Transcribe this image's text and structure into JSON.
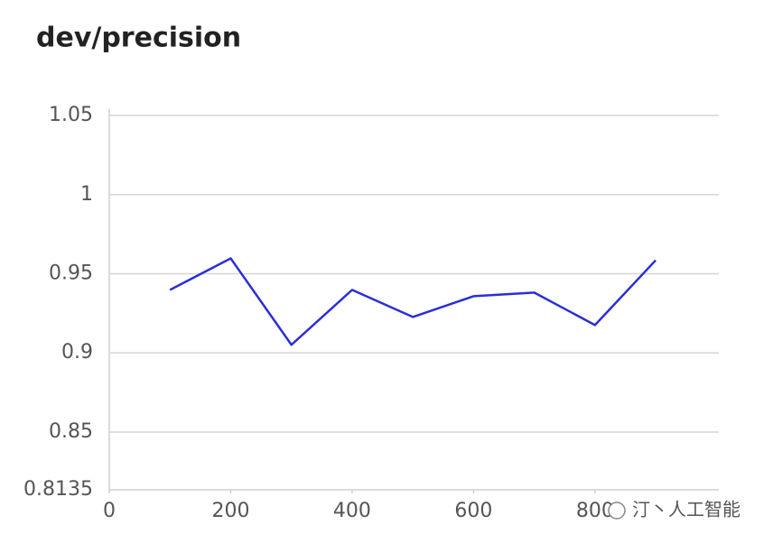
{
  "chart_data": {
    "type": "line",
    "title": "dev/precision",
    "x": [
      100,
      200,
      300,
      400,
      500,
      600,
      700,
      800,
      900
    ],
    "series": [
      {
        "name": "dev/precision",
        "color": "#2b2fd6",
        "values": [
          0.9398,
          0.9597,
          0.9051,
          0.9398,
          0.9227,
          0.9358,
          0.9381,
          0.9176,
          0.9585
        ]
      }
    ],
    "xlim": [
      0,
      1004
    ],
    "xticks": [
      0,
      200,
      400,
      600,
      800
    ],
    "ylim": [
      0.8135,
      1.054
    ],
    "yticks": [
      0.8135,
      0.85,
      0.9,
      0.95,
      1,
      1.05
    ],
    "grid": true
  },
  "watermark": "汀丶人工智能"
}
